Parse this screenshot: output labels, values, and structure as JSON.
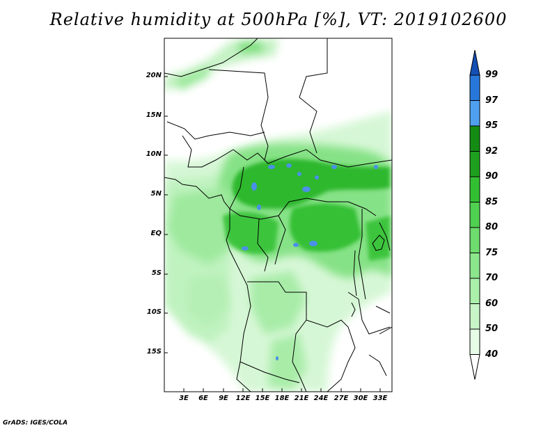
{
  "title": "Relative humidity at 500hPa [%], VT: 2019102600",
  "credit": "GrADS: IGES/COLA",
  "map": {
    "lat_ticks": [
      "20N",
      "15N",
      "10N",
      "5N",
      "EQ",
      "5S",
      "10S",
      "15S"
    ],
    "lon_ticks": [
      "3E",
      "6E",
      "9E",
      "12E",
      "15E",
      "18E",
      "21E",
      "24E",
      "27E",
      "30E",
      "33E"
    ]
  },
  "colorbar": {
    "levels": [
      "40",
      "50",
      "60",
      "70",
      "75",
      "80",
      "85",
      "90",
      "92",
      "95",
      "97",
      "99"
    ],
    "colors": [
      "#ffffff",
      "#e6fce6",
      "#c8f5c8",
      "#aaf0aa",
      "#8ce68c",
      "#6edc6e",
      "#50d050",
      "#32c032",
      "#1ea01e",
      "#148c14",
      "#50a0f0",
      "#2878dc",
      "#1450b4"
    ]
  }
}
